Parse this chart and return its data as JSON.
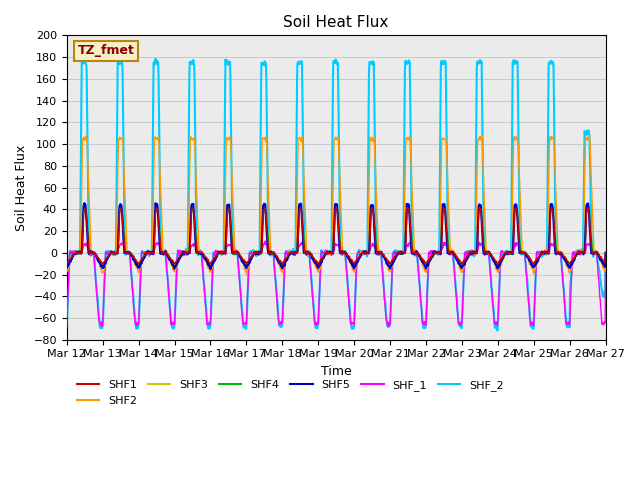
{
  "title": "Soil Heat Flux",
  "xlabel": "Time",
  "ylabel": "Soil Heat Flux",
  "ylim": [
    -80,
    200
  ],
  "yticks": [
    -80,
    -60,
    -40,
    -20,
    0,
    20,
    40,
    60,
    80,
    100,
    120,
    140,
    160,
    180,
    200
  ],
  "xtick_labels": [
    "Mar 12",
    "Mar 13",
    "Mar 14",
    "Mar 15",
    "Mar 16",
    "Mar 17",
    "Mar 18",
    "Mar 19",
    "Mar 20",
    "Mar 21",
    "Mar 22",
    "Mar 23",
    "Mar 24",
    "Mar 25",
    "Mar 26",
    "Mar 27"
  ],
  "num_days": 15,
  "annotation": "TZ_fmet",
  "annotation_bg": "#f5f0c8",
  "annotation_border": "#b8860b",
  "annotation_text_color": "#8b0000",
  "series": {
    "SHF1": {
      "color": "#cc0000",
      "lw": 1.0
    },
    "SHF2": {
      "color": "#ff9900",
      "lw": 1.0
    },
    "SHF3": {
      "color": "#cccc00",
      "lw": 1.0
    },
    "SHF4": {
      "color": "#00bb00",
      "lw": 1.0
    },
    "SHF5": {
      "color": "#0000cc",
      "lw": 1.5
    },
    "SHF_1": {
      "color": "#ff00ff",
      "lw": 1.0
    },
    "SHF_2": {
      "color": "#00ccff",
      "lw": 1.5
    }
  },
  "bg_color": "#ebebeb",
  "grid_color": "#bbbbbb"
}
